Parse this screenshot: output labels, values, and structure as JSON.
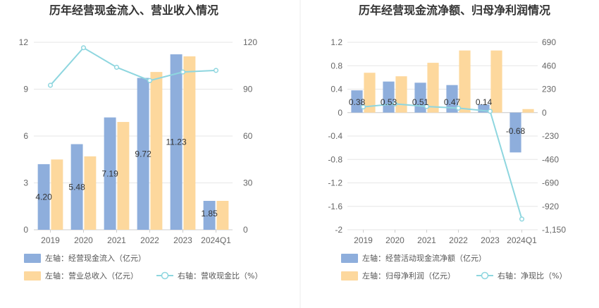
{
  "colors": {
    "bar_primary": "#8eaedc",
    "bar_secondary": "#fdd89d",
    "line": "#8ed6df",
    "grid": "#e6e6e6",
    "divider": "#eeeeee"
  },
  "chart_data": [
    {
      "type": "bar",
      "title": "历年经营现金流入、营业收入情况",
      "categories": [
        "2019",
        "2020",
        "2021",
        "2022",
        "2023",
        "2024Q1"
      ],
      "left_axis": {
        "ticks": [
          "0",
          "3",
          "6",
          "9",
          "12"
        ],
        "ylim": [
          0,
          12
        ]
      },
      "right_axis": {
        "ticks": [
          "0",
          "30",
          "60",
          "90",
          "120"
        ],
        "ylim": [
          0,
          120
        ]
      },
      "series": [
        {
          "name": "左轴：经营现金流入（亿元）",
          "kind": "bar",
          "axis": "left",
          "values": [
            4.2,
            5.48,
            7.19,
            9.72,
            11.23,
            1.85
          ],
          "labels": [
            "4.20",
            "5.48",
            "7.19",
            "9.72",
            "11.23",
            "1.85"
          ]
        },
        {
          "name": "左轴：营业总收入（亿元）",
          "kind": "bar",
          "axis": "left",
          "values": [
            4.5,
            4.7,
            6.9,
            10.1,
            11.1,
            1.85
          ]
        },
        {
          "name": "右轴：营收现金比（%）",
          "kind": "line",
          "axis": "right",
          "values": [
            92.5,
            116.5,
            104.0,
            95.5,
            101.0,
            102.0
          ]
        }
      ],
      "legend": [
        {
          "label": "左轴：经营现金流入（亿元）",
          "kind": "bar",
          "series": 0
        },
        {
          "label": "左轴：营业总收入（亿元）",
          "kind": "bar",
          "series": 1
        },
        {
          "label": "右轴：营收现金比（%）",
          "kind": "line",
          "series": 2
        }
      ]
    },
    {
      "type": "bar",
      "title": "历年经营现金流净额、归母净利润情况",
      "categories": [
        "2019",
        "2020",
        "2021",
        "2022",
        "2023",
        "2024Q1"
      ],
      "left_axis": {
        "ticks": [
          "-2",
          "-1.6",
          "-1.2",
          "-0.8",
          "-0.4",
          "0",
          "0.4",
          "0.8",
          "1.2"
        ],
        "ylim": [
          -2,
          1.2
        ]
      },
      "right_axis": {
        "ticks": [
          "-1,150",
          "-920",
          "-690",
          "-460",
          "-230",
          "0",
          "230",
          "460",
          "690"
        ],
        "ylim": [
          -1150,
          690
        ]
      },
      "series": [
        {
          "name": "左轴：经营活动现金流净额（亿元）",
          "kind": "bar",
          "axis": "left",
          "values": [
            0.38,
            0.53,
            0.51,
            0.47,
            0.14,
            -0.68
          ],
          "labels": [
            "0.38",
            "0.53",
            "0.51",
            "0.47",
            "0.14",
            "-0.68"
          ]
        },
        {
          "name": "左轴：归母净利润（亿元）",
          "kind": "bar",
          "axis": "left",
          "values": [
            0.68,
            0.62,
            0.85,
            1.06,
            1.06,
            0.06
          ]
        },
        {
          "name": "右轴：净现比（%）",
          "kind": "line",
          "axis": "right",
          "values": [
            56,
            86,
            60,
            44,
            13,
            -1045
          ]
        }
      ],
      "legend": [
        {
          "label": "左轴：经营活动现金流净额（亿元）",
          "kind": "bar",
          "series": 0
        },
        {
          "label": "左轴：归母净利润（亿元）",
          "kind": "bar",
          "series": 1
        },
        {
          "label": "右轴：净现比（%）",
          "kind": "line",
          "series": 2
        }
      ]
    }
  ]
}
